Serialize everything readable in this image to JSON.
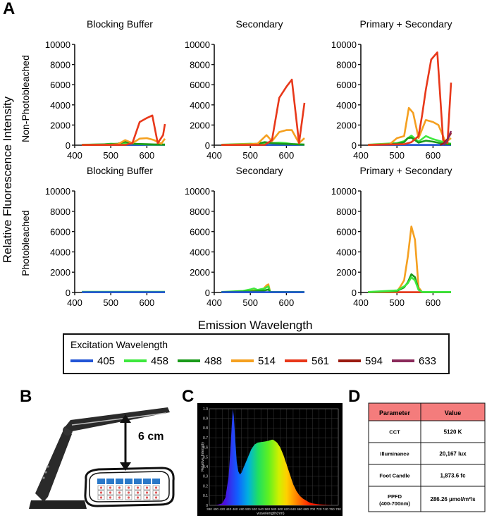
{
  "panel_letters": {
    "a": "A",
    "b": "B",
    "c": "C",
    "d": "D"
  },
  "panel_a": {
    "y_axis_title": "Relative Fluorescence Intensity",
    "x_axis_title": "Emission Wavelength",
    "row_titles": [
      "Non-Photobleached",
      "Photobleached"
    ],
    "legend_title": "Excitation Wavelength",
    "colors": {
      "405": "#2255d6",
      "458": "#3ee83e",
      "488": "#1a9a1a",
      "514": "#f5a020",
      "561": "#e8381a",
      "594": "#9a1a10",
      "633": "#8a2a5a"
    }
  },
  "chart_data": [
    {
      "type": "line",
      "title": "Blocking Buffer",
      "row": "Non-Photobleached",
      "xlim": [
        400,
        650
      ],
      "ylim": [
        0,
        10000
      ],
      "x_ticks": [
        "400",
        "500",
        "600"
      ],
      "y_ticks": [
        "0",
        "2000",
        "4000",
        "6000",
        "8000",
        "10000"
      ],
      "series": [
        {
          "name": "405",
          "x": [
            420,
            650
          ],
          "values": [
            30,
            30
          ]
        },
        {
          "name": "458",
          "x": [
            420,
            480,
            500,
            520,
            540,
            560,
            580,
            600,
            620,
            640,
            650
          ],
          "values": [
            50,
            80,
            150,
            120,
            200,
            150,
            100,
            80,
            50,
            50,
            50
          ]
        },
        {
          "name": "488",
          "x": [
            420,
            500,
            520,
            540,
            560,
            580,
            600,
            620,
            650
          ],
          "values": [
            30,
            100,
            150,
            350,
            150,
            120,
            100,
            80,
            60
          ]
        },
        {
          "name": "514",
          "x": [
            420,
            500,
            520,
            540,
            560,
            580,
            600,
            620,
            640,
            650
          ],
          "values": [
            30,
            50,
            100,
            500,
            200,
            650,
            700,
            500,
            150,
            650
          ]
        },
        {
          "name": "561",
          "x": [
            420,
            540,
            560,
            580,
            600,
            615,
            630,
            645,
            650
          ],
          "values": [
            20,
            30,
            200,
            2300,
            2700,
            2950,
            200,
            1000,
            2100
          ]
        }
      ]
    },
    {
      "type": "line",
      "title": "Secondary",
      "row": "Non-Photobleached",
      "xlim": [
        400,
        650
      ],
      "ylim": [
        0,
        10000
      ],
      "x_ticks": [
        "400",
        "500",
        "600"
      ],
      "y_ticks": [
        "0",
        "2000",
        "4000",
        "6000",
        "8000",
        "10000"
      ],
      "series": [
        {
          "name": "405",
          "x": [
            420,
            650
          ],
          "values": [
            30,
            30
          ]
        },
        {
          "name": "458",
          "x": [
            420,
            500,
            520,
            540,
            560,
            580,
            600,
            620,
            650
          ],
          "values": [
            50,
            150,
            120,
            200,
            200,
            250,
            200,
            100,
            50
          ]
        },
        {
          "name": "488",
          "x": [
            420,
            500,
            520,
            540,
            560,
            580,
            600,
            620,
            650
          ],
          "values": [
            30,
            100,
            150,
            300,
            200,
            150,
            120,
            100,
            60
          ]
        },
        {
          "name": "514",
          "x": [
            420,
            500,
            520,
            545,
            560,
            580,
            600,
            615,
            635,
            650
          ],
          "values": [
            30,
            100,
            150,
            1000,
            400,
            1300,
            1500,
            1500,
            200,
            700
          ]
        },
        {
          "name": "561",
          "x": [
            420,
            540,
            560,
            580,
            600,
            615,
            635,
            650
          ],
          "values": [
            20,
            30,
            500,
            4700,
            5800,
            6500,
            200,
            4200
          ]
        }
      ]
    },
    {
      "type": "line",
      "title": "Primary + Secondary",
      "row": "Non-Photobleached",
      "xlim": [
        400,
        650
      ],
      "ylim": [
        0,
        10000
      ],
      "x_ticks": [
        "400",
        "500",
        "600"
      ],
      "y_ticks": [
        "0",
        "2000",
        "4000",
        "6000",
        "8000",
        "10000"
      ],
      "series": [
        {
          "name": "405",
          "x": [
            420,
            650
          ],
          "values": [
            30,
            30
          ]
        },
        {
          "name": "458",
          "x": [
            420,
            500,
            520,
            530,
            540,
            560,
            580,
            600,
            620,
            640,
            650
          ],
          "values": [
            50,
            200,
            400,
            700,
            950,
            350,
            900,
            600,
            400,
            200,
            150
          ]
        },
        {
          "name": "488",
          "x": [
            420,
            500,
            520,
            530,
            540,
            560,
            580,
            600,
            620,
            640,
            650
          ],
          "values": [
            30,
            150,
            300,
            700,
            750,
            250,
            450,
            350,
            200,
            100,
            80
          ]
        },
        {
          "name": "514",
          "x": [
            420,
            480,
            500,
            520,
            533,
            545,
            560,
            580,
            600,
            615,
            635,
            650
          ],
          "values": [
            30,
            100,
            700,
            900,
            3700,
            3200,
            700,
            2500,
            2300,
            2000,
            300,
            700
          ]
        },
        {
          "name": "561",
          "x": [
            420,
            520,
            540,
            560,
            570,
            580,
            595,
            612,
            628,
            640,
            650
          ],
          "values": [
            20,
            100,
            300,
            900,
            3000,
            5500,
            8500,
            9200,
            500,
            200,
            6200
          ]
        },
        {
          "name": "594",
          "x": [
            620,
            630,
            640,
            650
          ],
          "values": [
            20,
            200,
            600,
            1200
          ]
        },
        {
          "name": "633",
          "x": [
            630,
            640,
            650
          ],
          "values": [
            20,
            500,
            1400
          ]
        }
      ]
    },
    {
      "type": "line",
      "title": "Blocking Buffer",
      "row": "Photobleached",
      "xlim": [
        400,
        650
      ],
      "ylim": [
        0,
        10000
      ],
      "x_ticks": [
        "400",
        "500",
        "600"
      ],
      "y_ticks": [
        "0",
        "2000",
        "4000",
        "6000",
        "8000",
        "10000"
      ],
      "series": [
        {
          "name": "458",
          "x": [
            420,
            650
          ],
          "values": [
            60,
            60
          ]
        },
        {
          "name": "405",
          "x": [
            420,
            650
          ],
          "values": [
            30,
            30
          ]
        }
      ]
    },
    {
      "type": "line",
      "title": "Secondary",
      "row": "Photobleached",
      "xlim": [
        400,
        650
      ],
      "ylim": [
        0,
        10000
      ],
      "x_ticks": [
        "400",
        "500",
        "600"
      ],
      "y_ticks": [
        "0",
        "2000",
        "4000",
        "6000",
        "8000",
        "10000"
      ],
      "series": [
        {
          "name": "514",
          "x": [
            420,
            500,
            520,
            535,
            545,
            550,
            555,
            650
          ],
          "values": [
            30,
            150,
            250,
            300,
            700,
            800,
            30,
            30
          ]
        },
        {
          "name": "458",
          "x": [
            420,
            480,
            500,
            510,
            520,
            540,
            550,
            555,
            650
          ],
          "values": [
            50,
            150,
            300,
            400,
            250,
            400,
            600,
            50,
            50
          ]
        },
        {
          "name": "488",
          "x": [
            420,
            500,
            520,
            540,
            550,
            555,
            650
          ],
          "values": [
            30,
            100,
            150,
            200,
            300,
            30,
            30
          ]
        },
        {
          "name": "405",
          "x": [
            420,
            650
          ],
          "values": [
            30,
            30
          ]
        }
      ]
    },
    {
      "type": "line",
      "title": "Primary + Secondary",
      "row": "Photobleached",
      "xlim": [
        400,
        650
      ],
      "ylim": [
        0,
        10000
      ],
      "x_ticks": [
        "400",
        "500",
        "600"
      ],
      "y_ticks": [
        "0",
        "2000",
        "4000",
        "6000",
        "8000",
        "10000"
      ],
      "series": [
        {
          "name": "561",
          "x": [
            420,
            650
          ],
          "values": [
            30,
            30
          ]
        },
        {
          "name": "514",
          "x": [
            420,
            500,
            510,
            520,
            530,
            540,
            550,
            560,
            570,
            650
          ],
          "values": [
            30,
            100,
            600,
            1200,
            3500,
            6500,
            5200,
            500,
            30,
            30
          ]
        },
        {
          "name": "488",
          "x": [
            420,
            500,
            520,
            530,
            540,
            550,
            560,
            570,
            650
          ],
          "values": [
            30,
            150,
            500,
            1000,
            1800,
            1500,
            300,
            30,
            30
          ]
        },
        {
          "name": "458",
          "x": [
            420,
            500,
            520,
            530,
            540,
            550,
            560,
            570,
            650
          ],
          "values": [
            50,
            200,
            600,
            900,
            1500,
            1200,
            250,
            50,
            50
          ]
        }
      ]
    }
  ],
  "legend_items": [
    {
      "label": "405",
      "color": "#2255d6"
    },
    {
      "label": "458",
      "color": "#3ee83e"
    },
    {
      "label": "488",
      "color": "#1a9a1a"
    },
    {
      "label": "514",
      "color": "#f5a020"
    },
    {
      "label": "561",
      "color": "#e8381a"
    },
    {
      "label": "594",
      "color": "#9a1a10"
    },
    {
      "label": "633",
      "color": "#8a2a5a"
    }
  ],
  "panel_b": {
    "distance_label": "6 cm"
  },
  "panel_c": {
    "y_label": "Relative Intensity",
    "x_label": "wavelength(nm)",
    "y_ticks": [
      "0",
      "0.1",
      "0.2",
      "0.3",
      "0.4",
      "0.5",
      "0.6",
      "0.7",
      "0.8",
      "0.9",
      "1.0"
    ],
    "x_ticks": [
      "380",
      "400",
      "420",
      "440",
      "460",
      "480",
      "500",
      "520",
      "540",
      "560",
      "580",
      "600",
      "620",
      "640",
      "660",
      "680",
      "700",
      "720",
      "740",
      "760",
      "780"
    ],
    "spectrum": {
      "x": [
        380,
        400,
        410,
        420,
        430,
        440,
        445,
        450,
        453,
        456,
        460,
        465,
        470,
        475,
        480,
        485,
        490,
        500,
        510,
        520,
        530,
        540,
        550,
        560,
        570,
        575,
        580,
        590,
        600,
        610,
        620,
        630,
        640,
        650,
        660,
        670,
        680,
        690,
        700,
        720,
        740,
        760,
        780
      ],
      "values": [
        0.0,
        0.0,
        0.01,
        0.02,
        0.08,
        0.3,
        0.55,
        0.85,
        1.0,
        0.92,
        0.7,
        0.45,
        0.35,
        0.32,
        0.34,
        0.38,
        0.42,
        0.5,
        0.58,
        0.63,
        0.65,
        0.655,
        0.66,
        0.665,
        0.675,
        0.68,
        0.675,
        0.65,
        0.6,
        0.52,
        0.42,
        0.32,
        0.22,
        0.15,
        0.1,
        0.07,
        0.05,
        0.03,
        0.02,
        0.01,
        0.005,
        0.0,
        0.0
      ]
    }
  },
  "panel_d": {
    "header": [
      "Parameter",
      "Value"
    ],
    "rows": [
      {
        "param": "CCT",
        "value": "5120 K"
      },
      {
        "param": "Illuminance",
        "value": "20,167 lux"
      },
      {
        "param": "Foot Candle",
        "value": "1,873.6 fc"
      },
      {
        "param": "PPFD",
        "param_sub": "(400-700nm)",
        "value": "286.26 µmol/m²/s"
      }
    ]
  }
}
